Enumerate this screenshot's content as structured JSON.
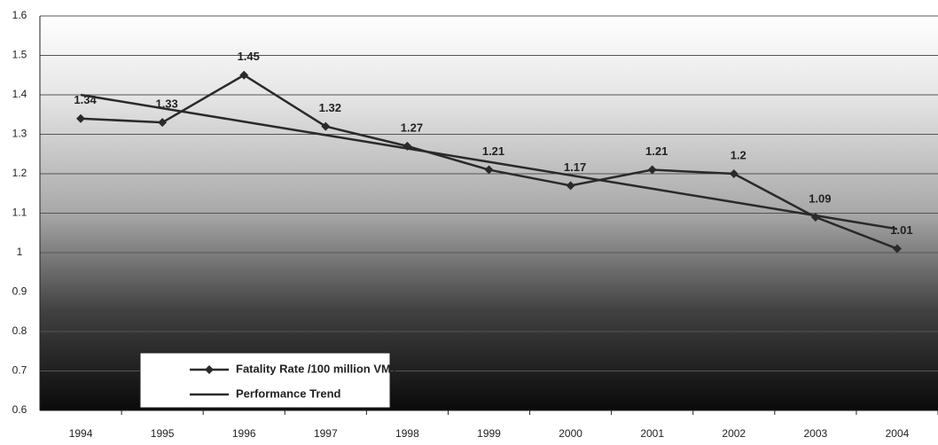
{
  "chart_data": {
    "type": "line",
    "categories": [
      "1994",
      "1995",
      "1996",
      "1997",
      "1998",
      "1999",
      "2000",
      "2001",
      "2002",
      "2003",
      "2004"
    ],
    "series": [
      {
        "name": "Fatality Rate /100 million VMT",
        "color": "#2a2a2a",
        "marker": "diamond",
        "values": [
          1.34,
          1.33,
          1.45,
          1.32,
          1.27,
          1.21,
          1.17,
          1.21,
          1.2,
          1.09,
          1.01
        ]
      },
      {
        "name": "Performance Trend",
        "color": "#2a2a2a",
        "values": [
          1.4,
          1.366,
          1.332,
          1.298,
          1.264,
          1.23,
          1.196,
          1.162,
          1.128,
          1.094,
          1.06
        ]
      }
    ],
    "ylim": [
      0.6,
      1.6
    ],
    "yticks": [
      0.6,
      0.7,
      0.8,
      0.9,
      1,
      1.1,
      1.2,
      1.3,
      1.4,
      1.5,
      1.6
    ],
    "grid": true,
    "legend": "lower left"
  }
}
